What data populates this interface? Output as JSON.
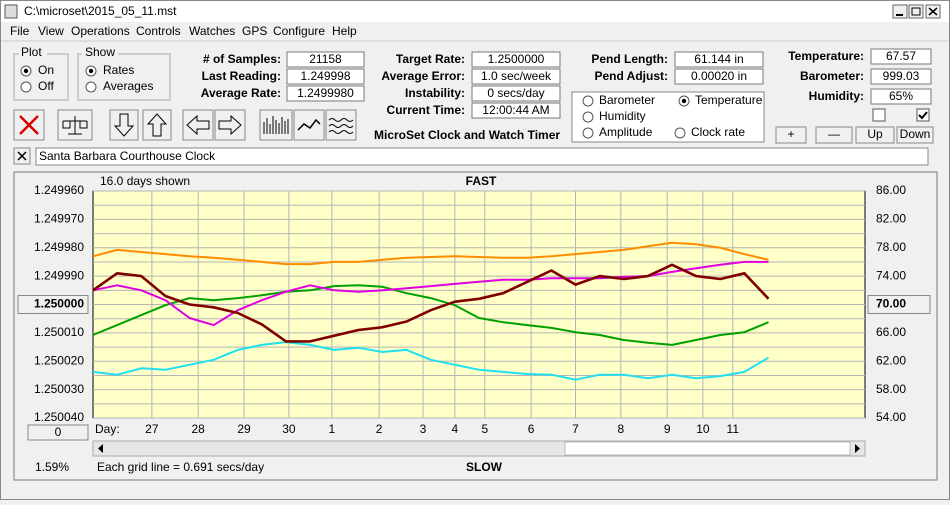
{
  "window": {
    "title": "C:\\microset\\2015_05_11.mst"
  },
  "menu": [
    "File",
    "View",
    "Operations",
    "Controls",
    "Watches",
    "GPS",
    "Configure",
    "Help"
  ],
  "plot_group": {
    "title": "Plot",
    "options": [
      "On",
      "Off"
    ],
    "selected": 0
  },
  "show_group": {
    "title": "Show",
    "options": [
      "Rates",
      "Averages"
    ],
    "selected": 0
  },
  "stats": [
    {
      "label": "# of Samples:",
      "value": "21158"
    },
    {
      "label": "Last Reading:",
      "value": "1.249998"
    },
    {
      "label": "Average Rate:",
      "value": "1.2499980"
    }
  ],
  "rates": [
    {
      "label": "Target Rate:",
      "value": "1.2500000"
    },
    {
      "label": "Average Error:",
      "value": "1.0 sec/week"
    },
    {
      "label": "Instability:",
      "value": "0 secs/day"
    },
    {
      "label": "Current Time:",
      "value": "12:00:44 AM"
    }
  ],
  "pendulum": [
    {
      "label": "Pend Length:",
      "value": "61.144 in"
    },
    {
      "label": "Pend Adjust:",
      "value": "0.00020 in"
    }
  ],
  "sensors": [
    {
      "label": "Temperature:",
      "value": "67.57"
    },
    {
      "label": "Barometer:",
      "value": "999.03"
    },
    {
      "label": "Humidity:",
      "value": "65%"
    }
  ],
  "app_title": "MicroSet Clock and Watch Timer",
  "checkboxes": [
    false,
    true
  ],
  "buttons": [
    "+",
    "—",
    "Up",
    "Down"
  ],
  "clock_name": "Santa Barbara Courthouse Clock",
  "chart_data": {
    "type": "line",
    "days_shown": "16.0 days shown",
    "title": "FAST",
    "bottom_label": "SLOW",
    "grid_note": "Each grid line = 0.691 secs/day",
    "percent": "1.59%",
    "x_label": "Day:",
    "offset_button": "0",
    "xlim": [
      0,
      16
    ],
    "xticks": [
      {
        "value": 1.22,
        "label": "27"
      },
      {
        "value": 2.18,
        "label": "28"
      },
      {
        "value": 3.13,
        "label": "29"
      },
      {
        "value": 4.06,
        "label": "30"
      },
      {
        "value": 4.95,
        "label": "1"
      },
      {
        "value": 5.93,
        "label": "2"
      },
      {
        "value": 6.84,
        "label": "3"
      },
      {
        "value": 7.5,
        "label": "4"
      },
      {
        "value": 8.12,
        "label": "5"
      },
      {
        "value": 9.08,
        "label": "6"
      },
      {
        "value": 10.0,
        "label": "7"
      },
      {
        "value": 10.94,
        "label": "8"
      },
      {
        "value": 11.9,
        "label": "9"
      },
      {
        "value": 12.64,
        "label": "10"
      },
      {
        "value": 13.26,
        "label": "11"
      }
    ],
    "ylim": [
      1.25004,
      1.24996
    ],
    "yticks": [
      {
        "value": 1.24996,
        "label": "1.249960"
      },
      {
        "value": 1.24997,
        "label": "1.249970"
      },
      {
        "value": 1.24998,
        "label": "1.249980"
      },
      {
        "value": 1.24999,
        "label": "1.249990"
      },
      {
        "value": 1.25,
        "label": "1.250000"
      },
      {
        "value": 1.25001,
        "label": "1.250010"
      },
      {
        "value": 1.25002,
        "label": "1.250020"
      },
      {
        "value": 1.25003,
        "label": "1.250030"
      },
      {
        "value": 1.25004,
        "label": "1.250040"
      }
    ],
    "y2lim": [
      54,
      86
    ],
    "y2ticks": [
      {
        "value": 86,
        "label": "86.00"
      },
      {
        "value": 82,
        "label": "82.00"
      },
      {
        "value": 78,
        "label": "78.00"
      },
      {
        "value": 74,
        "label": "74.00"
      },
      {
        "value": 70,
        "label": "70.00"
      },
      {
        "value": 66,
        "label": "66.00"
      },
      {
        "value": 62,
        "label": "62.00"
      },
      {
        "value": 58,
        "label": "58.00"
      },
      {
        "value": 54,
        "label": "54.00"
      }
    ],
    "grid": true,
    "x": [
      0,
      0.5,
      1,
      1.5,
      2,
      2.5,
      3,
      3.5,
      4,
      4.5,
      5,
      5.5,
      6,
      6.5,
      7,
      7.5,
      8,
      8.5,
      9,
      9.5,
      10,
      10.5,
      11,
      11.5,
      12,
      12.5,
      13,
      13.5,
      14
    ],
    "series": [
      {
        "name": "Clock rate",
        "color": "#800000",
        "axis": "y",
        "checked": false,
        "values": [
          1.249995,
          1.249989,
          1.24999,
          1.249997,
          1.25,
          1.250001,
          1.250003,
          1.250007,
          1.250013,
          1.250013,
          1.250011,
          1.250009,
          1.250008,
          1.250006,
          1.250002,
          1.249999,
          1.249998,
          1.249996,
          1.249992,
          1.249988,
          1.249993,
          1.24999,
          1.249991,
          1.24999,
          1.249986,
          1.24999,
          1.249991,
          1.249989,
          1.249998
        ]
      },
      {
        "name": "Barometer",
        "color": "#ff8c00",
        "axis": "y2",
        "checked": false,
        "values": [
          76.8,
          77.7,
          77.4,
          77.1,
          76.8,
          76.6,
          76.3,
          76.0,
          75.7,
          75.7,
          76.0,
          76.0,
          76.3,
          76.6,
          76.7,
          76.8,
          76.7,
          76.6,
          76.6,
          76.8,
          77.1,
          77.4,
          77.7,
          78.2,
          78.7,
          78.5,
          78.0,
          77.1,
          76.3
        ]
      },
      {
        "name": "Temperature",
        "color": "#00a000",
        "axis": "y2",
        "checked": true,
        "values": [
          65.7,
          67.1,
          68.5,
          69.9,
          70.9,
          70.6,
          70.9,
          71.3,
          71.8,
          72.0,
          72.6,
          72.7,
          72.5,
          71.6,
          70.9,
          69.9,
          68.1,
          67.5,
          67.1,
          66.7,
          66.1,
          65.7,
          65.0,
          64.6,
          64.3,
          65.0,
          65.7,
          66.1,
          67.5
        ]
      },
      {
        "name": "Humidity",
        "color": "#e000e0",
        "axis": "y2",
        "checked": false,
        "values": [
          72.0,
          72.7,
          72.0,
          70.6,
          68.1,
          67.1,
          69.2,
          70.6,
          71.8,
          72.7,
          72.0,
          71.8,
          72.0,
          72.3,
          72.6,
          72.9,
          73.2,
          73.5,
          73.5,
          73.7,
          73.7,
          73.7,
          73.9,
          74.0,
          74.6,
          75.1,
          75.6,
          76.0,
          76.0
        ]
      },
      {
        "name": "Amplitude",
        "color": "#20e0f0",
        "axis": "y2",
        "checked": false,
        "values": [
          60.5,
          60.1,
          61.0,
          60.8,
          61.5,
          62.2,
          63.6,
          64.3,
          64.7,
          64.3,
          63.6,
          63.9,
          63.3,
          63.6,
          62.2,
          61.5,
          60.8,
          60.5,
          60.2,
          60.1,
          59.4,
          60.1,
          60.1,
          59.6,
          60.1,
          59.6,
          59.9,
          60.5,
          62.5
        ]
      }
    ]
  }
}
